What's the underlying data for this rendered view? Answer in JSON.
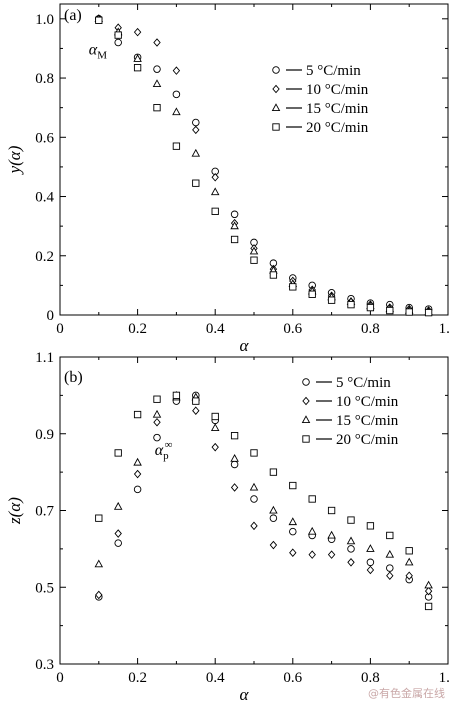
{
  "chart_data": [
    {
      "type": "scatter",
      "panel_label": "(a)",
      "xlabel": "α",
      "ylabel": "y(α)",
      "xlim": [
        0,
        1.0
      ],
      "ylim": [
        0,
        1.05
      ],
      "xticks": [
        "0",
        "0.2",
        "0.4",
        "0.6",
        "0.8",
        "1.0"
      ],
      "yticks": [
        "0",
        "0.2",
        "0.4",
        "0.6",
        "0.8",
        "1.0"
      ],
      "annotation": {
        "text": "α",
        "sub": "M",
        "x": 0.1,
        "y": 0.9
      },
      "legend_position": "right",
      "x": [
        0.1,
        0.15,
        0.2,
        0.25,
        0.3,
        0.35,
        0.4,
        0.45,
        0.5,
        0.55,
        0.6,
        0.65,
        0.7,
        0.75,
        0.8,
        0.85,
        0.9,
        0.95
      ],
      "series": [
        {
          "name": "5 °C/min",
          "marker": "circle",
          "values": [
            1.0,
            0.92,
            0.87,
            0.83,
            0.745,
            0.65,
            0.485,
            0.34,
            0.245,
            0.175,
            0.125,
            0.1,
            0.075,
            0.055,
            0.04,
            0.035,
            0.025,
            0.02
          ]
        },
        {
          "name": "10 °C/min",
          "marker": "diamond",
          "values": [
            1.0,
            0.97,
            0.955,
            0.92,
            0.825,
            0.625,
            0.465,
            0.31,
            0.225,
            0.155,
            0.115,
            0.085,
            0.065,
            0.045,
            0.035,
            0.025,
            0.02,
            0.015
          ]
        },
        {
          "name": "15 °C/min",
          "marker": "triangle",
          "values": [
            1.0,
            0.955,
            0.865,
            0.78,
            0.685,
            0.545,
            0.415,
            0.3,
            0.215,
            0.15,
            0.105,
            0.08,
            0.06,
            0.045,
            0.03,
            0.02,
            0.015,
            0.01
          ]
        },
        {
          "name": "20 °C/min",
          "marker": "square",
          "values": [
            0.995,
            0.945,
            0.835,
            0.7,
            0.57,
            0.445,
            0.35,
            0.255,
            0.185,
            0.135,
            0.095,
            0.07,
            0.05,
            0.035,
            0.025,
            0.015,
            0.01,
            0.008
          ]
        }
      ]
    },
    {
      "type": "scatter",
      "panel_label": "(b)",
      "xlabel": "α",
      "ylabel": "z(α)",
      "xlim": [
        0,
        1.0
      ],
      "ylim": [
        0.3,
        1.1
      ],
      "xticks": [
        "0",
        "0.2",
        "0.4",
        "0.6",
        "0.8",
        "1.0"
      ],
      "yticks": [
        "0.3",
        "0.5",
        "0.7",
        "0.9",
        "1.1"
      ],
      "annotation": {
        "text": "α",
        "sub": "p",
        "sup": "∞",
        "x": 0.27,
        "y": 0.86
      },
      "legend_position": "top-right",
      "x": [
        0.1,
        0.15,
        0.2,
        0.25,
        0.3,
        0.35,
        0.4,
        0.45,
        0.5,
        0.55,
        0.6,
        0.65,
        0.7,
        0.75,
        0.8,
        0.85,
        0.9,
        0.95
      ],
      "series": [
        {
          "name": "5 °C/min",
          "marker": "circle",
          "values": [
            0.475,
            0.615,
            0.755,
            0.89,
            0.985,
            1.0,
            0.935,
            0.82,
            0.73,
            0.68,
            0.645,
            0.635,
            0.625,
            0.6,
            0.565,
            0.55,
            0.52,
            0.475
          ]
        },
        {
          "name": "10 °C/min",
          "marker": "diamond",
          "values": [
            0.48,
            0.64,
            0.795,
            0.93,
            1.0,
            0.96,
            0.865,
            0.76,
            0.66,
            0.61,
            0.59,
            0.585,
            0.585,
            0.565,
            0.545,
            0.53,
            0.53,
            0.49
          ]
        },
        {
          "name": "15 °C/min",
          "marker": "triangle",
          "values": [
            0.56,
            0.71,
            0.825,
            0.95,
            0.995,
            0.995,
            0.915,
            0.835,
            0.76,
            0.7,
            0.67,
            0.645,
            0.635,
            0.62,
            0.6,
            0.585,
            0.565,
            0.505
          ]
        },
        {
          "name": "20 °C/min",
          "marker": "square",
          "values": [
            0.68,
            0.85,
            0.95,
            0.99,
            1.0,
            0.985,
            0.945,
            0.895,
            0.85,
            0.8,
            0.765,
            0.73,
            0.7,
            0.675,
            0.66,
            0.635,
            0.595,
            0.45
          ]
        }
      ]
    }
  ],
  "watermark": "@有色金属在线"
}
